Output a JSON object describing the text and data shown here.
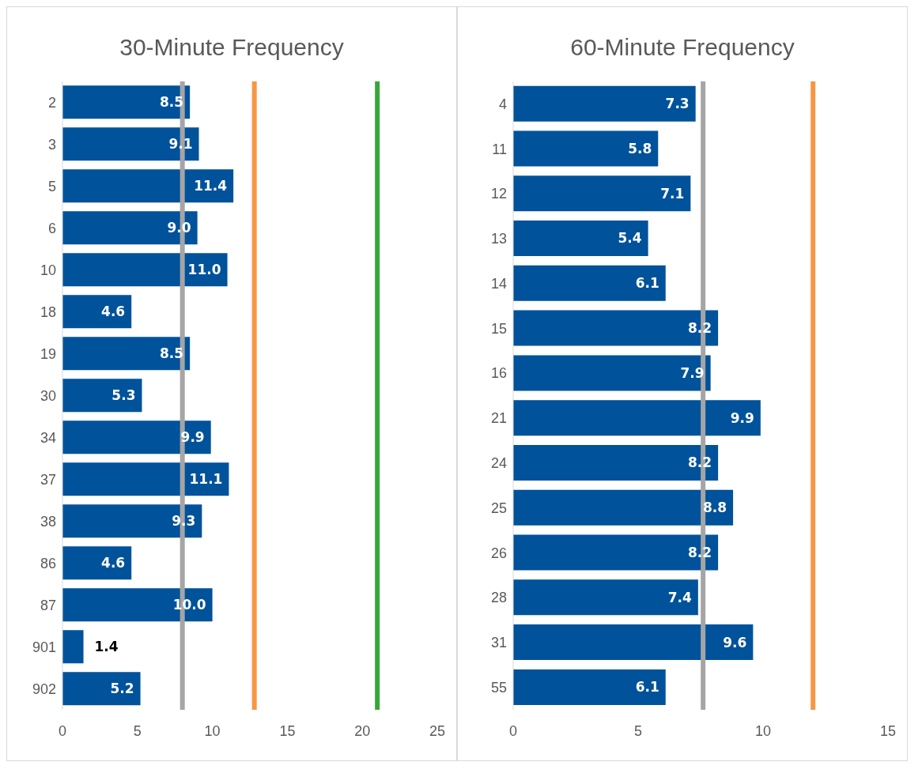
{
  "chart_data": [
    {
      "type": "bar",
      "orientation": "horizontal",
      "title": "30-Minute Frequency",
      "categories": [
        "2",
        "3",
        "5",
        "6",
        "10",
        "18",
        "19",
        "30",
        "34",
        "37",
        "38",
        "86",
        "87",
        "901",
        "902"
      ],
      "values": [
        8.5,
        9.1,
        11.4,
        9.0,
        11.0,
        4.6,
        8.5,
        5.3,
        9.9,
        11.1,
        9.3,
        4.6,
        10.0,
        1.4,
        5.2
      ],
      "value_labels": [
        "8.5",
        "9.1",
        "11.4",
        "9.0",
        "11.0",
        "4.6",
        "8.5",
        "5.3",
        "9.9",
        "11.1",
        "9.3",
        "4.6",
        "10.0",
        "1.4",
        "5.2"
      ],
      "color": "#00529b",
      "xlim": [
        0,
        25
      ],
      "xticks": [
        0,
        5,
        10,
        15,
        20,
        25
      ],
      "grid": false,
      "legend": false,
      "ref_lines": [
        {
          "axis": "x",
          "value": 8,
          "color": "#a5a5a5"
        },
        {
          "axis": "x",
          "value": 12.8,
          "color": "#f79646"
        },
        {
          "axis": "x",
          "value": 21,
          "color": "#3aa53a"
        }
      ]
    },
    {
      "type": "bar",
      "orientation": "horizontal",
      "title": "60-Minute Frequency",
      "categories": [
        "4",
        "11",
        "12",
        "13",
        "14",
        "15",
        "16",
        "21",
        "24",
        "25",
        "26",
        "28",
        "31",
        "55"
      ],
      "values": [
        7.3,
        5.8,
        7.1,
        5.4,
        6.1,
        8.2,
        7.9,
        9.9,
        8.2,
        8.8,
        8.2,
        7.4,
        9.6,
        6.1
      ],
      "value_labels": [
        "7.3",
        "5.8",
        "7.1",
        "5.4",
        "6.1",
        "8.2",
        "7.9",
        "9.9",
        "8.2",
        "8.8",
        "8.2",
        "7.4",
        "9.6",
        "6.1"
      ],
      "color": "#00529b",
      "xlim": [
        0,
        15
      ],
      "xticks": [
        0,
        5,
        10,
        15
      ],
      "grid": false,
      "legend": false,
      "ref_lines": [
        {
          "axis": "x",
          "value": 7.6,
          "color": "#a5a5a5"
        },
        {
          "axis": "x",
          "value": 12,
          "color": "#f79646"
        }
      ]
    }
  ]
}
